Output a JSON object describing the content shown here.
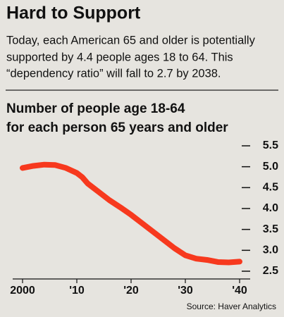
{
  "chart_data": {
    "type": "line",
    "title": "Hard to Support",
    "subtitle": [
      "Today, each American 65 and older is potentially",
      "supported by 4.4 people ages 18 to 64. This",
      "“dependency ratio” will fall to 2.7 by 2038."
    ],
    "chart_title": [
      "Number of people age 18-64",
      "for each person 65 years and older"
    ],
    "source": "Source: Haver Analytics",
    "x": [
      2000,
      2002,
      2004,
      2006,
      2008,
      2010,
      2011,
      2012,
      2014,
      2016,
      2018,
      2020,
      2022,
      2024,
      2026,
      2028,
      2030,
      2032,
      2034,
      2036,
      2038,
      2040
    ],
    "values": [
      4.97,
      5.02,
      5.05,
      5.04,
      4.97,
      4.85,
      4.75,
      4.6,
      4.4,
      4.2,
      4.03,
      3.85,
      3.65,
      3.45,
      3.25,
      3.05,
      2.88,
      2.8,
      2.77,
      2.72,
      2.71,
      2.73
    ],
    "color": "#f7391e",
    "xlim": [
      2000,
      2040
    ],
    "xticks": [
      2000,
      {
        "value": 2010,
        "label": "'10"
      },
      {
        "value": 2020,
        "label": "'20"
      },
      {
        "value": 2030,
        "label": "'30"
      },
      {
        "value": 2040,
        "label": "'40"
      }
    ],
    "ylim": [
      2.5,
      5.5
    ],
    "yticks": [
      2.5,
      {
        "value": 3,
        "label": "3.0"
      },
      3.5,
      {
        "value": 4,
        "label": "4.0"
      },
      4.5,
      {
        "value": 5,
        "label": "5.0"
      },
      5.5
    ]
  }
}
